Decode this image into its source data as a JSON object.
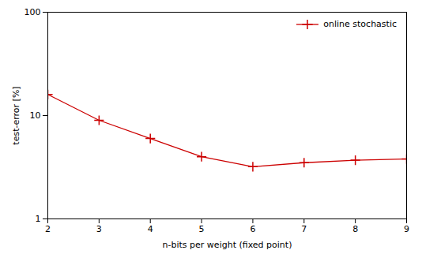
{
  "chart_data": {
    "type": "line",
    "x": [
      2,
      3,
      4,
      5,
      6,
      7,
      8,
      9
    ],
    "series": [
      {
        "name": "online stochastic",
        "color": "#cc0000",
        "marker": "plus",
        "line_style": "solid",
        "values": [
          16.0,
          9.0,
          6.0,
          4.0,
          3.2,
          3.5,
          3.7,
          3.8
        ]
      }
    ],
    "xlabel": "n-bits per weight (fixed point)",
    "ylabel": "test-error [%]",
    "xlim": [
      2,
      9
    ],
    "ylim": [
      1,
      100
    ],
    "xticks": [
      2,
      3,
      4,
      5,
      6,
      7,
      8,
      9
    ],
    "yticks": [
      1,
      10,
      100
    ],
    "log": "y",
    "grid": false,
    "legend": "upper right"
  }
}
